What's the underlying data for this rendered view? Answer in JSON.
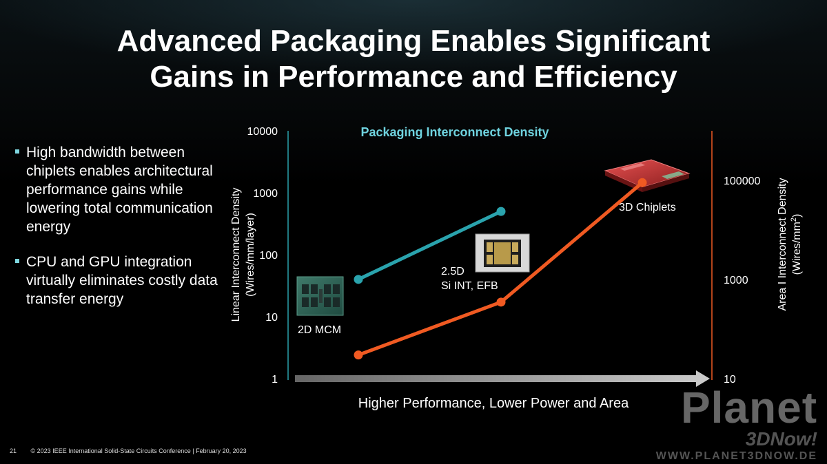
{
  "slide": {
    "title_line1": "Advanced Packaging Enables Significant",
    "title_line2": "Gains in Performance and Efficiency",
    "bullets": [
      "High bandwidth between chiplets enables architectural performance gains while lowering total communication energy",
      "CPU and GPU integration virtually eliminates costly data transfer energy"
    ],
    "footer_page": "21",
    "footer_text": "© 2023 IEEE International Solid-State Circuits Conference  |  February 20, 2023",
    "watermark_line1": "Planet",
    "watermark_line2": "3DNow!",
    "watermark_line3": "WWW.PLANET3DNOW.DE",
    "colors": {
      "teal": "#2aa3ad",
      "orange": "#f05a22",
      "chart_title": "#6fd3df"
    }
  },
  "chart_data": {
    "type": "line",
    "title": "Packaging Interconnect Density",
    "xlabel": "Higher Performance, Lower Power and Area",
    "ylabel_left_line1": "Linear Interconnect Density",
    "ylabel_left_line2": "(Wires/mm/layer)",
    "ylabel_right_line1": "Area I Interconnect Density",
    "ylabel_right_line2": "(Wires/mm",
    "ylabel_right_sup": "2",
    "ylabel_right_close": ")",
    "y_left_scale": "log",
    "y_left_ticks": [
      "1",
      "10",
      "100",
      "1000",
      "10000"
    ],
    "y_left_range": [
      1,
      10000
    ],
    "y_right_scale": "log",
    "y_right_ticks": [
      "10",
      "1000",
      "100000"
    ],
    "y_right_range": [
      10,
      1000000
    ],
    "categories": [
      "2D MCM",
      "2.5D Si INT, EFB",
      "3D Chiplets"
    ],
    "category_labels": [
      [
        "2D MCM"
      ],
      [
        "2.5D",
        "Si INT, EFB"
      ],
      [
        "3D Chiplets"
      ]
    ],
    "series": [
      {
        "axis": "left",
        "color": "#2aa3ad",
        "x": [
          0,
          1
        ],
        "values": [
          40,
          500
        ]
      },
      {
        "axis": "right",
        "color": "#f05a22",
        "x": [
          0,
          1,
          2
        ],
        "values": [
          30,
          350,
          90000
        ]
      }
    ],
    "grid": false
  }
}
